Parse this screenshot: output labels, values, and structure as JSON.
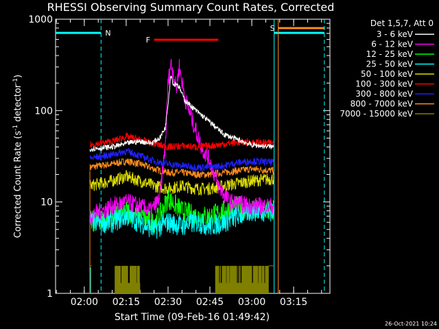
{
  "chart_data": {
    "type": "line",
    "title": "RHESSI Observing Summary Count Rates, Corrected",
    "xlabel": "Start Time (09-Feb-16 01:49:42)",
    "ylabel_main": "Corrected Count Rate (s",
    "ylabel_sup1": "-1",
    "ylabel_mid": " detector",
    "ylabel_sup2": "-1",
    "ylabel_end": ")",
    "y_scale": "log",
    "ylim": [
      1,
      1000
    ],
    "xlim": [
      "01:49:42",
      "03:28:00"
    ],
    "x_ticks": [
      "02:00",
      "02:15",
      "02:30",
      "02:45",
      "03:00",
      "03:15"
    ],
    "y_ticks": [
      "1",
      "10",
      "100",
      "1000"
    ],
    "timestamp": "26-Oct-2021 10:24",
    "legend": {
      "header": "Det 1,5,7, Att 0",
      "placement": "top-right",
      "entries": [
        {
          "label": "3 - 6 keV",
          "color": "#ffffff"
        },
        {
          "label": "6 - 12 keV",
          "color": "#ff00ff"
        },
        {
          "label": "12 - 25 keV",
          "color": "#00ff00"
        },
        {
          "label": "25 - 50 keV",
          "color": "#00ffff"
        },
        {
          "label": "50 - 100 keV",
          "color": "#dddd00"
        },
        {
          "label": "100 - 300 keV",
          "color": "#ff0000"
        },
        {
          "label": "300 - 800 keV",
          "color": "#2020ff"
        },
        {
          "label": "800 - 7000 keV",
          "color": "#ff8c1a"
        },
        {
          "label": "7000 - 15000 keV",
          "color": "#808000"
        }
      ]
    },
    "flags": {
      "night_label": "N",
      "saa_label": "S",
      "flare_label": "F",
      "flare_start": "02:25",
      "flare_end": "02:48",
      "night_until": "02:06",
      "saa_start": "03:08",
      "saa_end": "03:26"
    },
    "data_start": "02:02",
    "data_end": "03:08",
    "series": [
      {
        "name": "3 - 6 keV",
        "color": "#ffffff",
        "t": [
          "02:02",
          "02:10",
          "02:17",
          "02:20",
          "02:24",
          "02:27",
          "02:29",
          "02:30",
          "02:31",
          "02:32",
          "02:33",
          "02:34",
          "02:36",
          "02:40",
          "02:45",
          "02:50",
          "02:55",
          "03:00",
          "03:08"
        ],
        "v": [
          38,
          40,
          45,
          46,
          44,
          50,
          65,
          120,
          250,
          190,
          200,
          180,
          130,
          100,
          75,
          55,
          48,
          42,
          40
        ]
      },
      {
        "name": "6 - 12 keV",
        "color": "#ff00ff",
        "t": [
          "02:02",
          "02:10",
          "02:15",
          "02:20",
          "02:24",
          "02:27",
          "02:29",
          "02:30",
          "02:31",
          "02:32",
          "02:33",
          "02:34",
          "02:36",
          "02:38",
          "02:40",
          "02:42",
          "02:45",
          "02:48",
          "02:52",
          "03:00",
          "03:08"
        ],
        "v": [
          7,
          9,
          10,
          9,
          8,
          11,
          40,
          200,
          330,
          250,
          170,
          310,
          140,
          90,
          60,
          40,
          28,
          15,
          10,
          9,
          9
        ]
      },
      {
        "name": "12 - 25 keV",
        "color": "#00ff00",
        "t": [
          "02:02",
          "02:10",
          "02:15",
          "02:20",
          "02:25",
          "02:28",
          "02:30",
          "02:33",
          "02:35",
          "02:40",
          "02:45",
          "02:50",
          "02:55",
          "03:00",
          "03:08"
        ],
        "v": [
          6,
          7,
          8,
          7,
          6,
          8,
          11,
          9,
          8,
          7,
          7,
          8,
          9,
          8,
          8
        ]
      },
      {
        "name": "25 - 50 keV",
        "color": "#00ffff",
        "t": [
          "02:02",
          "02:10",
          "02:15",
          "02:20",
          "02:25",
          "02:30",
          "02:35",
          "02:40",
          "02:45",
          "02:50",
          "02:55",
          "03:00",
          "03:08"
        ],
        "v": [
          6,
          6,
          7,
          6,
          5,
          6,
          5.5,
          6,
          5.5,
          6,
          7,
          8,
          8
        ]
      },
      {
        "name": "50 - 100 keV",
        "color": "#dddd00",
        "t": [
          "02:02",
          "02:10",
          "02:15",
          "02:20",
          "02:25",
          "02:30",
          "02:35",
          "02:40",
          "02:45",
          "02:50",
          "02:55",
          "03:00",
          "03:08"
        ],
        "v": [
          15,
          17,
          19,
          17,
          15,
          14,
          15,
          14,
          14,
          15,
          16,
          17,
          18
        ]
      },
      {
        "name": "100 - 300 keV",
        "color": "#ff0000",
        "t": [
          "02:02",
          "02:10",
          "02:15",
          "02:20",
          "02:25",
          "02:30",
          "02:35",
          "02:40",
          "02:45",
          "02:50",
          "02:55",
          "03:00",
          "03:08"
        ],
        "v": [
          42,
          46,
          52,
          48,
          43,
          40,
          41,
          40,
          41,
          43,
          45,
          45,
          44
        ]
      },
      {
        "name": "300 - 800 keV",
        "color": "#2020ff",
        "t": [
          "02:02",
          "02:10",
          "02:15",
          "02:20",
          "02:25",
          "02:30",
          "02:35",
          "02:40",
          "02:45",
          "02:50",
          "02:55",
          "03:00",
          "03:08"
        ],
        "v": [
          30,
          33,
          36,
          32,
          28,
          26,
          25,
          24,
          24,
          25,
          27,
          28,
          27
        ]
      },
      {
        "name": "800 - 7000 keV",
        "color": "#ff8c1a",
        "t": [
          "02:02",
          "02:10",
          "02:15",
          "02:20",
          "02:25",
          "02:30",
          "02:35",
          "02:40",
          "02:45",
          "02:50",
          "02:55",
          "03:00",
          "03:08"
        ],
        "v": [
          24,
          26,
          28,
          26,
          23,
          21,
          21,
          20,
          20,
          21,
          22,
          23,
          22
        ]
      },
      {
        "name": "7000 - 15000 keV",
        "color": "#808000",
        "t": [
          "02:11",
          "02:20"
        ],
        "v": [
          1.5,
          1.5
        ]
      }
    ]
  }
}
